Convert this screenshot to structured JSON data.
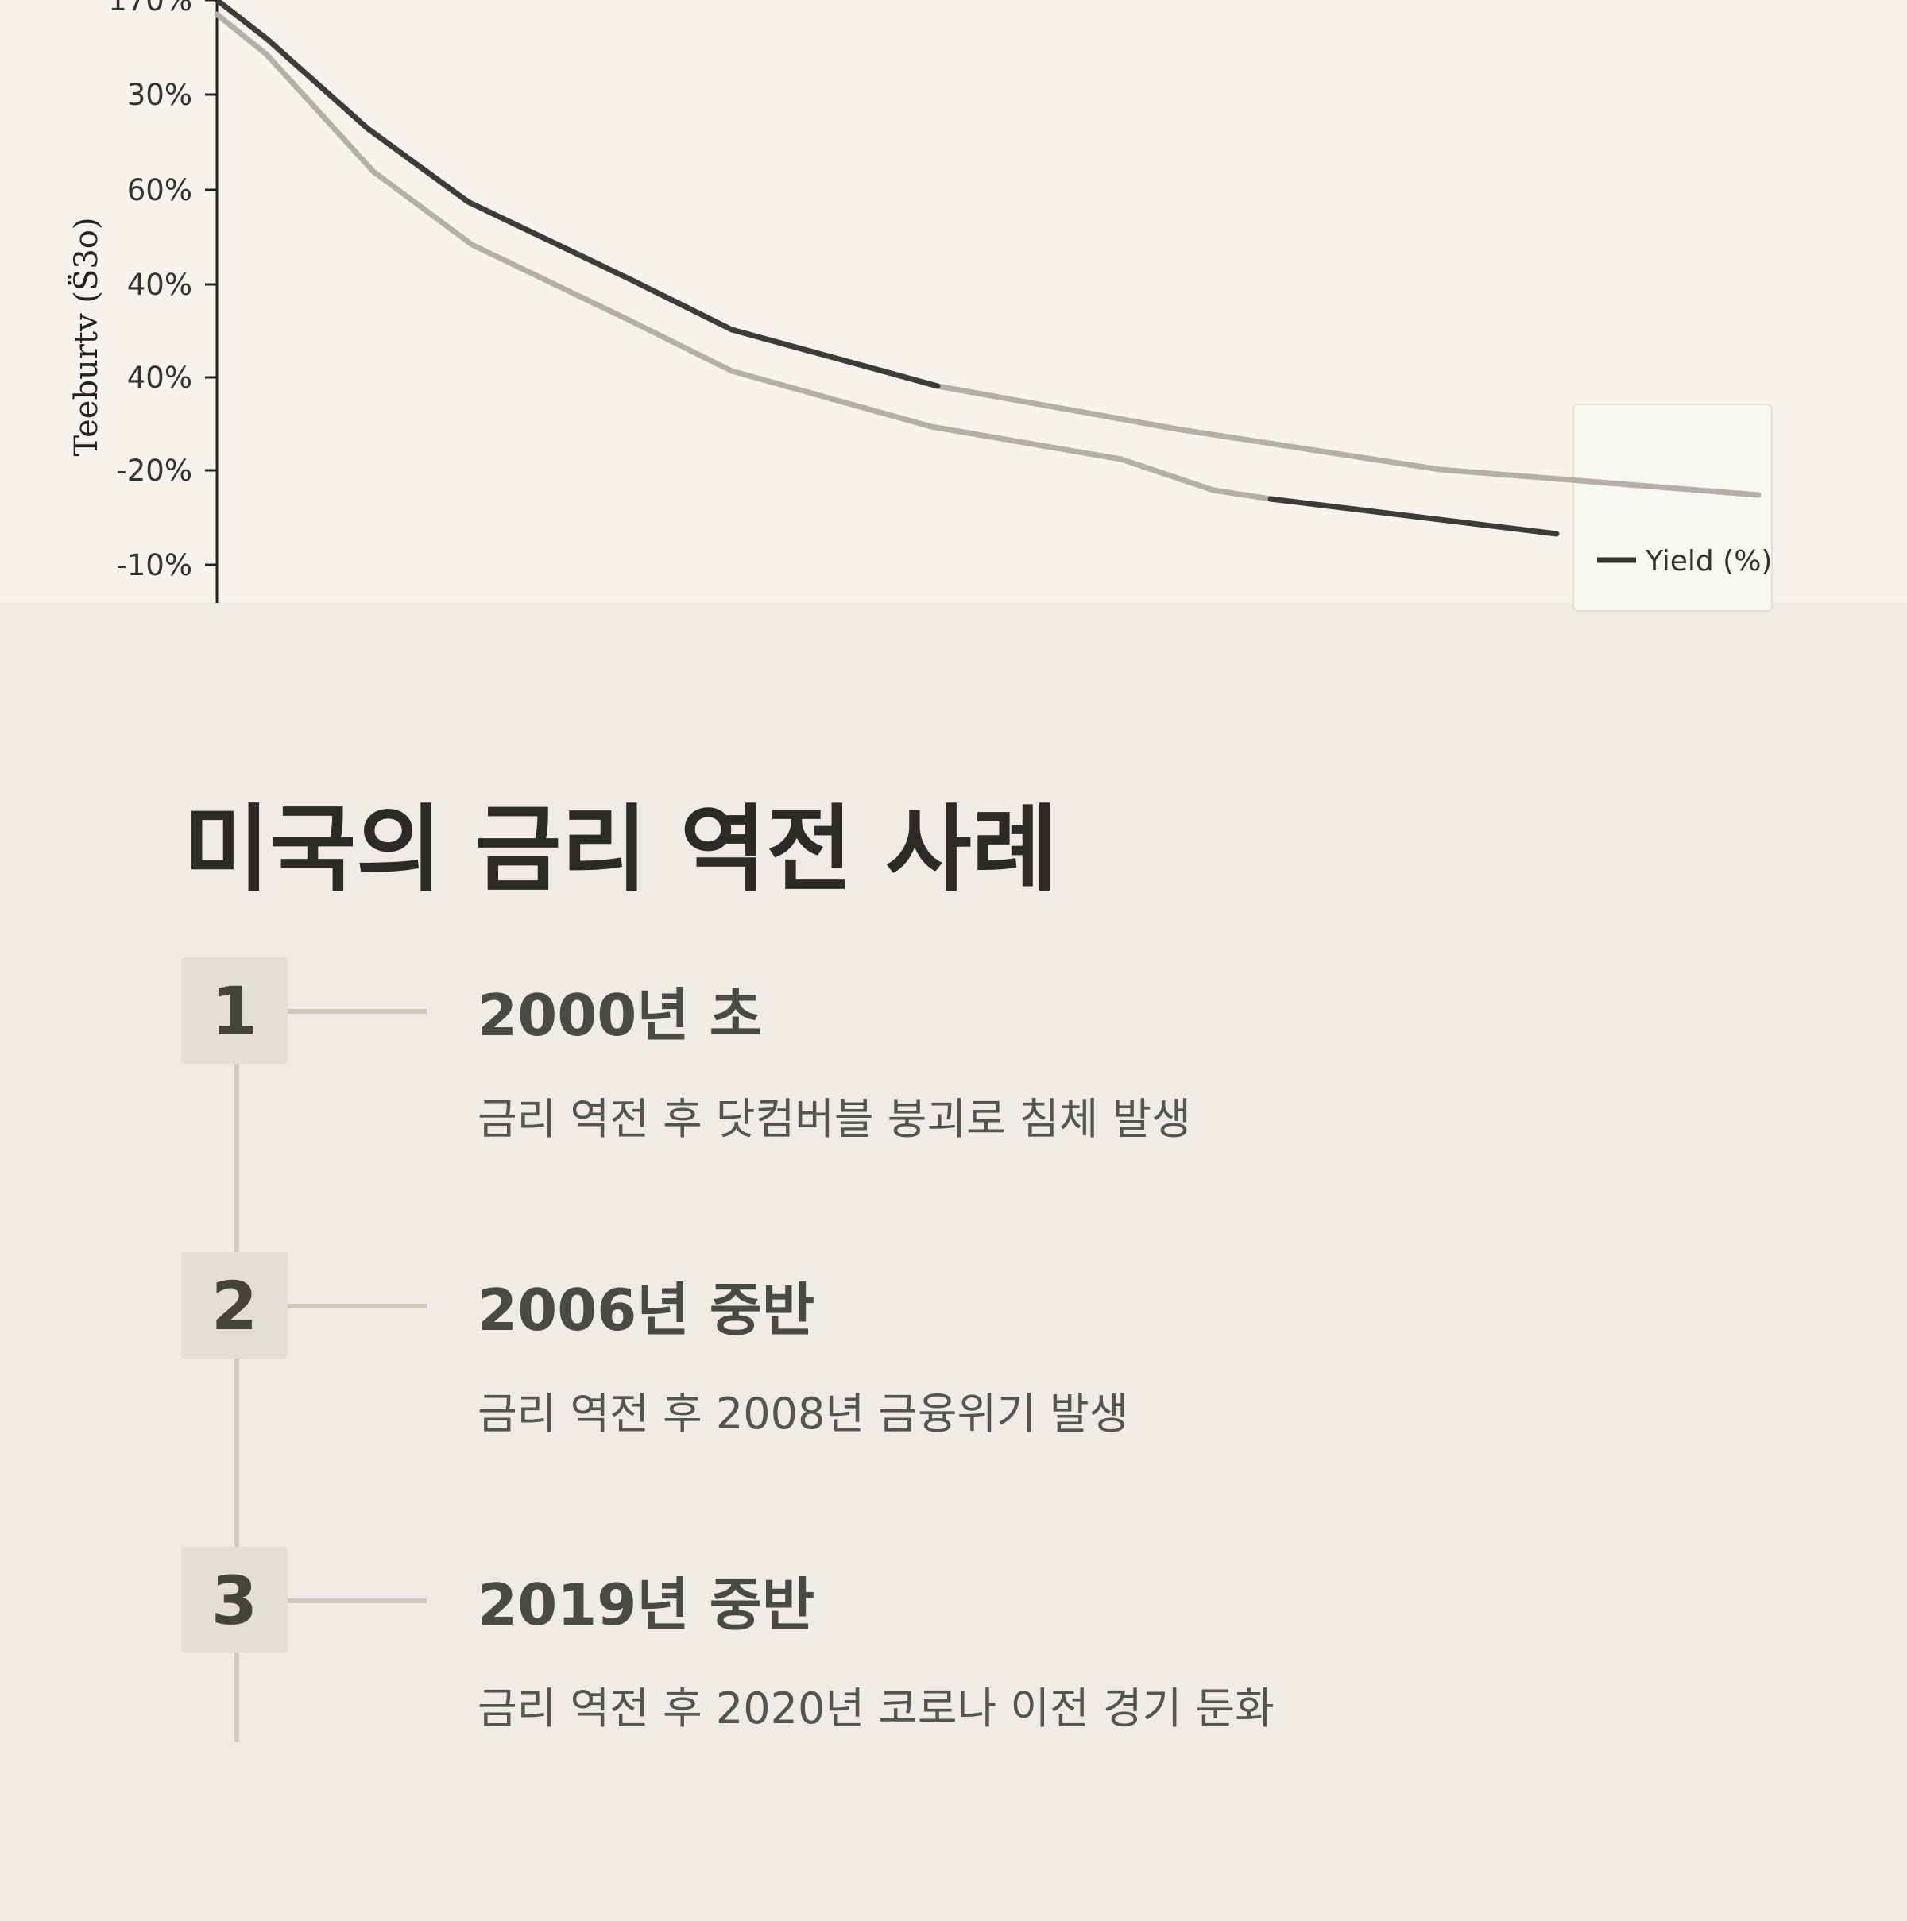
{
  "chart_image": {
    "axis_label": "Teeburtv (S̈3o)",
    "tick_labels": [
      "170%",
      "30%",
      "60%",
      "40%",
      "40%",
      "-20%",
      "-10%"
    ],
    "legend": "Yield (%)"
  },
  "section": {
    "title": "미국의 금리 역전 사례",
    "items": [
      {
        "number": "1",
        "heading": "2000년 초",
        "text": "금리 역전 후 닷컴버블 붕괴로 침체 발생"
      },
      {
        "number": "2",
        "heading": "2006년 중반",
        "text": "금리 역전 후 2008년 금융위기 발생"
      },
      {
        "number": "3",
        "heading": "2019년 중반",
        "text": "금리 역전 후 2020년 코로나 이전 경기 둔화"
      }
    ]
  }
}
